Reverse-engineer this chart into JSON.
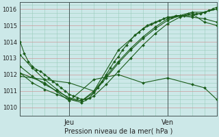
{
  "title": "",
  "xlabel": "Pression niveau de la mer( hPa )",
  "ylabel": "",
  "bg_color": "#cce8e8",
  "grid_color_major": "#cc9999",
  "grid_color_minor": "#99ccbb",
  "line_color": "#1a5c1a",
  "ylim": [
    1009.5,
    1016.4
  ],
  "xlim": [
    0,
    48
  ],
  "yticks": [
    1010,
    1011,
    1012,
    1013,
    1014,
    1015,
    1016
  ],
  "xtick_positions": [
    12,
    36
  ],
  "xtick_labels": [
    "Jeu",
    "Ven"
  ],
  "vline_positions": [
    12,
    36
  ],
  "series": [
    {
      "x": [
        0,
        1,
        2,
        3,
        4,
        5,
        6,
        7,
        8,
        9,
        10,
        11,
        12,
        13,
        14,
        15,
        16,
        17,
        18,
        19,
        20,
        21,
        22,
        23,
        24,
        25,
        26,
        27,
        28,
        29,
        30,
        31,
        32,
        33,
        34,
        35,
        36,
        37,
        38,
        39,
        40,
        41,
        42,
        43,
        44,
        45,
        46,
        47,
        48
      ],
      "y": [
        1014.0,
        1013.3,
        1012.8,
        1012.5,
        1012.3,
        1012.2,
        1012.0,
        1011.8,
        1011.6,
        1011.4,
        1011.2,
        1011.0,
        1010.8,
        1010.7,
        1010.6,
        1010.5,
        1010.5,
        1010.6,
        1010.9,
        1011.2,
        1011.6,
        1012.0,
        1012.4,
        1012.8,
        1013.1,
        1013.5,
        1013.8,
        1014.1,
        1014.4,
        1014.6,
        1014.8,
        1015.0,
        1015.1,
        1015.2,
        1015.3,
        1015.4,
        1015.5,
        1015.5,
        1015.6,
        1015.6,
        1015.6,
        1015.7,
        1015.7,
        1015.7,
        1015.7,
        1015.8,
        1015.9,
        1016.0,
        1016.1
      ],
      "marker_every": 1
    },
    {
      "x": [
        0,
        3,
        6,
        9,
        12,
        15,
        18,
        21,
        24,
        27,
        30,
        33,
        36,
        39,
        42,
        45,
        48
      ],
      "y": [
        1013.2,
        1012.4,
        1011.7,
        1011.1,
        1010.5,
        1010.3,
        1010.7,
        1011.4,
        1012.2,
        1013.0,
        1013.8,
        1014.5,
        1015.1,
        1015.5,
        1015.7,
        1015.2,
        1015.0
      ],
      "marker_every": 1
    },
    {
      "x": [
        0,
        3,
        6,
        9,
        12,
        15,
        18,
        21,
        24,
        27,
        30,
        33,
        36,
        39,
        42,
        45,
        48
      ],
      "y": [
        1012.5,
        1011.9,
        1011.4,
        1011.0,
        1010.6,
        1010.4,
        1010.9,
        1011.8,
        1012.7,
        1013.5,
        1014.2,
        1014.8,
        1015.3,
        1015.6,
        1015.8,
        1015.8,
        1016.0
      ],
      "marker_every": 1
    },
    {
      "x": [
        0,
        3,
        6,
        9,
        12,
        15,
        18,
        21,
        24,
        27,
        30,
        33,
        36,
        39,
        42,
        45,
        48
      ],
      "y": [
        1012.1,
        1011.5,
        1011.1,
        1010.8,
        1010.5,
        1010.4,
        1011.0,
        1011.9,
        1012.8,
        1013.6,
        1014.3,
        1014.9,
        1015.4,
        1015.6,
        1015.5,
        1015.4,
        1015.2
      ],
      "marker_every": 1
    },
    {
      "x": [
        0,
        6,
        12,
        18,
        24,
        30,
        36,
        42,
        48
      ],
      "y": [
        1011.9,
        1011.7,
        1011.5,
        1011.0,
        1013.5,
        1014.8,
        1015.5,
        1015.6,
        1016.0
      ],
      "marker_every": 1
    },
    {
      "x": [
        0,
        6,
        12,
        18,
        24,
        30,
        36,
        42,
        45,
        48
      ],
      "y": [
        1012.1,
        1011.5,
        1010.4,
        1011.7,
        1012.0,
        1011.5,
        1011.8,
        1011.4,
        1011.2,
        1010.5
      ],
      "marker_every": 1
    }
  ]
}
